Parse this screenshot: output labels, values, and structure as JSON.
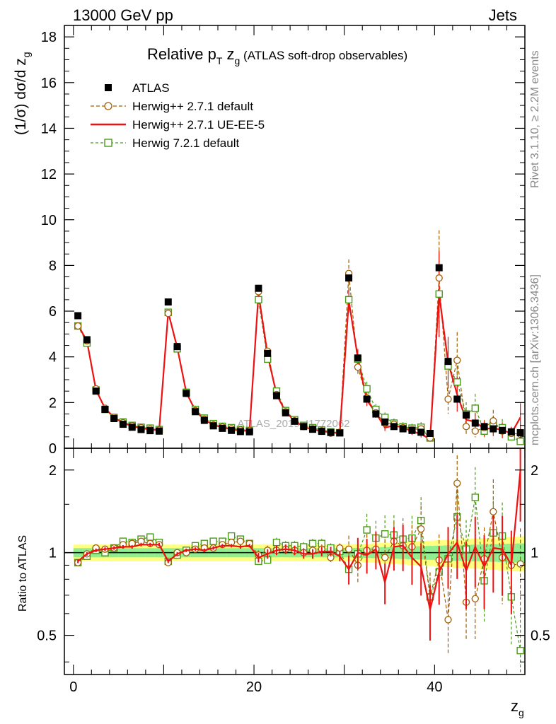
{
  "header": {
    "left": "13000 GeV pp",
    "right": "Jets",
    "side_top": "Rivet 3.1.10, ≥ 2.2M events",
    "side_bottom": "mcplots.cern.ch [arXiv:1306.3436]",
    "watermark": "ATLAS_2019_I1772062"
  },
  "chart_data": [
    {
      "type": "line",
      "title_main": "Relative p",
      "title_sub": "T",
      "title_z": " z",
      "title_zsub": "g",
      "title_rest": " (ATLAS soft-drop observables)",
      "ylabel": "(1/σ) dσ/d z",
      "ylabel_sub": "g",
      "xlim": [
        -1,
        50
      ],
      "ylim": [
        0,
        18.5
      ],
      "yticks": [
        0,
        2,
        4,
        6,
        8,
        10,
        12,
        14,
        16,
        18
      ],
      "ytick_labels": [
        "0",
        "2",
        "4",
        "6",
        "8",
        "10",
        "12",
        "14",
        "16",
        "18"
      ],
      "legend_position": "top-left",
      "x": [
        0.5,
        1.5,
        2.5,
        3.5,
        4.5,
        5.5,
        6.5,
        7.5,
        8.5,
        9.5,
        10.5,
        11.5,
        12.5,
        13.5,
        14.5,
        15.5,
        16.5,
        17.5,
        18.5,
        19.5,
        20.5,
        21.5,
        22.5,
        23.5,
        24.5,
        25.5,
        26.5,
        27.5,
        28.5,
        29.5,
        30.5,
        31.5,
        32.5,
        33.5,
        34.5,
        35.5,
        36.5,
        37.5,
        38.5,
        39.5,
        40.5,
        41.5,
        42.5,
        43.5,
        44.5,
        45.5,
        46.5,
        47.5,
        48.5,
        49.5
      ],
      "series": [
        {
          "name": "ATLAS",
          "color": "#000000",
          "marker": "square",
          "values": [
            5.8,
            4.75,
            2.5,
            1.7,
            1.3,
            1.05,
            0.92,
            0.82,
            0.77,
            0.75,
            6.4,
            4.45,
            2.4,
            1.6,
            1.22,
            0.98,
            0.87,
            0.78,
            0.73,
            0.72,
            7.0,
            4.15,
            2.3,
            1.55,
            1.18,
            0.95,
            0.83,
            0.74,
            0.69,
            0.67,
            7.45,
            3.95,
            2.15,
            1.5,
            1.15,
            0.95,
            0.85,
            0.78,
            0.7,
            0.65,
            7.9,
            3.8,
            2.15,
            1.45,
            1.1,
            0.95,
            0.85,
            0.78,
            0.72,
            0.68
          ]
        },
        {
          "name": "Herwig++ 2.7.1 default",
          "color": "#a35d00",
          "marker": "circle",
          "dash": "5,3",
          "values": [
            5.35,
            4.7,
            2.6,
            1.75,
            1.35,
            1.12,
            0.99,
            0.9,
            0.83,
            0.8,
            5.9,
            4.45,
            2.4,
            1.65,
            1.27,
            1.02,
            0.93,
            0.85,
            0.8,
            0.78,
            6.85,
            4.25,
            2.35,
            1.6,
            1.2,
            0.95,
            0.85,
            0.76,
            0.66,
            0.7,
            7.65,
            3.55,
            2.2,
            1.55,
            1.1,
            1.05,
            0.9,
            0.82,
            0.85,
            0.45,
            7.45,
            2.15,
            3.85,
            0.95,
            0.75,
            0.9,
            1.2,
            0.75,
            0.65,
            0.62
          ]
        },
        {
          "name": "Herwig++ 2.7.1 UE-EE-5",
          "color": "#ee1111",
          "marker": "none",
          "values": [
            5.4,
            4.7,
            2.55,
            1.75,
            1.35,
            1.1,
            0.97,
            0.88,
            0.82,
            0.8,
            5.95,
            4.4,
            2.45,
            1.65,
            1.25,
            1.02,
            0.92,
            0.83,
            0.77,
            0.76,
            6.75,
            4.1,
            2.35,
            1.6,
            1.2,
            0.94,
            0.82,
            0.75,
            0.7,
            0.65,
            6.45,
            3.95,
            2.1,
            1.55,
            0.9,
            1.0,
            0.9,
            0.75,
            0.62,
            0.4,
            6.75,
            3.75,
            2.35,
            1.25,
            1.15,
            0.85,
            0.88,
            0.8,
            0.65,
            1.35
          ]
        },
        {
          "name": "Herwig 7.2.1 default",
          "color": "#4a9a1a",
          "marker": "square-open",
          "dash": "4,3",
          "values": [
            5.35,
            4.6,
            2.55,
            1.7,
            1.35,
            1.15,
            1.0,
            0.92,
            0.88,
            0.82,
            5.95,
            4.35,
            2.45,
            1.7,
            1.32,
            1.08,
            0.96,
            0.9,
            0.82,
            0.78,
            6.5,
            3.9,
            2.5,
            1.65,
            1.25,
            1.0,
            0.9,
            0.8,
            0.72,
            0.68,
            6.5,
            3.9,
            2.6,
            1.7,
            1.35,
            1.1,
            0.95,
            0.88,
            0.92,
            0.45,
            6.75,
            3.6,
            2.9,
            1.5,
            1.75,
            0.75,
            1.0,
            0.9,
            0.5,
            0.3
          ]
        }
      ]
    },
    {
      "type": "line",
      "ylabel": "Ratio to ATLAS",
      "xlabel": "z",
      "xlabel_sub": "g",
      "xlim": [
        -1,
        50
      ],
      "ylim": [
        0.36,
        2.4
      ],
      "log_y": true,
      "xticks": [
        0,
        20,
        40
      ],
      "xtick_labels": [
        "0",
        "20",
        "40"
      ],
      "yticks": [
        0.5,
        1,
        2
      ],
      "ytick_labels": [
        "0.5",
        "1",
        "2"
      ],
      "series": [
        {
          "name": "Herwig++ 2.7.1 default",
          "values": [
            0.92,
            0.99,
            1.04,
            1.03,
            1.04,
            1.07,
            1.08,
            1.1,
            1.08,
            1.07,
            0.92,
            1.0,
            1.0,
            1.03,
            1.04,
            1.04,
            1.07,
            1.09,
            1.1,
            1.08,
            0.98,
            1.02,
            1.02,
            1.03,
            1.02,
            1.0,
            1.02,
            1.03,
            0.96,
            1.04,
            1.03,
            0.9,
            1.02,
            1.03,
            0.96,
            1.1,
            1.06,
            1.05,
            1.22,
            0.69,
            0.94,
            0.57,
            1.79,
            0.66,
            0.68,
            0.95,
            1.41,
            0.96,
            0.9,
            0.91
          ]
        },
        {
          "name": "Herwig++ 2.7.1 UE-EE-5",
          "values": [
            0.93,
            0.99,
            1.02,
            1.03,
            1.04,
            1.05,
            1.05,
            1.07,
            1.07,
            1.07,
            0.93,
            0.99,
            1.02,
            1.03,
            1.02,
            1.04,
            1.06,
            1.06,
            1.05,
            1.06,
            0.96,
            0.99,
            1.02,
            1.03,
            1.02,
            0.99,
            0.99,
            1.01,
            1.01,
            0.97,
            0.87,
            1.0,
            0.98,
            1.03,
            0.78,
            1.05,
            1.06,
            0.96,
            0.89,
            0.62,
            0.85,
            0.99,
            1.09,
            0.86,
            1.05,
            0.89,
            1.04,
            1.03,
            0.9,
            1.99
          ]
        },
        {
          "name": "Herwig 7.2.1 default",
          "values": [
            0.92,
            0.97,
            1.02,
            1.0,
            1.04,
            1.1,
            1.09,
            1.12,
            1.14,
            1.09,
            0.93,
            0.98,
            1.02,
            1.06,
            1.08,
            1.1,
            1.1,
            1.15,
            1.12,
            1.08,
            0.93,
            0.94,
            1.09,
            1.06,
            1.06,
            1.05,
            1.08,
            1.08,
            1.04,
            1.01,
            0.87,
            0.99,
            1.21,
            1.13,
            1.17,
            1.16,
            1.12,
            1.13,
            1.31,
            0.69,
            0.85,
            0.95,
            1.35,
            1.03,
            1.59,
            0.79,
            1.18,
            1.15,
            0.69,
            0.44
          ]
        }
      ]
    }
  ]
}
